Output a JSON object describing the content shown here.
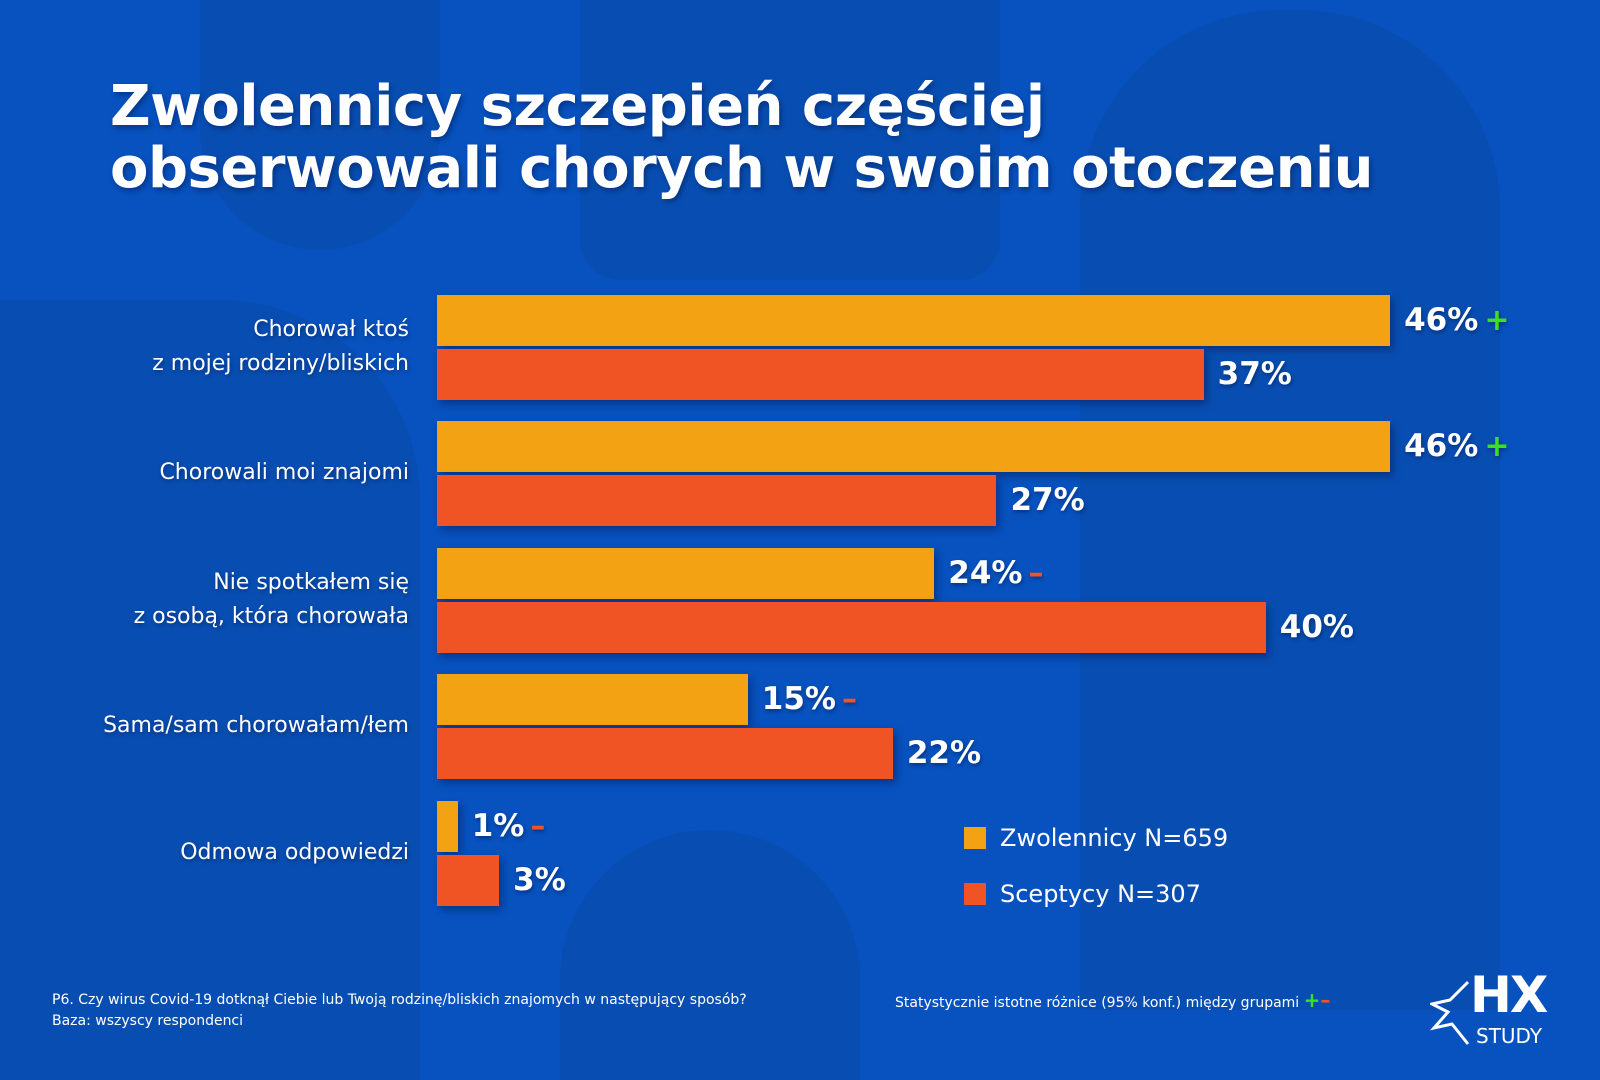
{
  "title": [
    "Zwolennicy szczepień częściej",
    "obserwowali chorych w swoim otoczeniu"
  ],
  "colors": {
    "zwolennicy": "#f2a213",
    "sceptycy": "#f15424",
    "plus": "#3ee01e",
    "minus": "#f15424",
    "background": "#0752bf"
  },
  "chart_data": {
    "type": "bar",
    "orientation": "horizontal",
    "categories": [
      "Chorował ktoś z mojej rodziny/bliskich",
      "Chorowali moi znajomi",
      "Nie spotkałem się z osobą, która chorowała",
      "Sama/sam chorowałam/łem",
      "Odmowa odpowiedzi"
    ],
    "category_lines": [
      [
        "Chorował ktoś",
        "z mojej rodziny/bliskich"
      ],
      [
        "Chorowali moi znajomi"
      ],
      [
        "Nie spotkałem się",
        "z osobą, która chorowała"
      ],
      [
        "Sama/sam chorowałam/łem"
      ],
      [
        "Odmowa odpowiedzi"
      ]
    ],
    "series": [
      {
        "name": "Zwolennicy N=659",
        "values": [
          46,
          46,
          24,
          15,
          1
        ],
        "labels": [
          "46%",
          "46%",
          "24%",
          "15%",
          "1%"
        ],
        "significance": [
          "+",
          "+",
          "–",
          "–",
          "–"
        ]
      },
      {
        "name": "Sceptycy N=307",
        "values": [
          37,
          27,
          40,
          22,
          3
        ],
        "labels": [
          "37%",
          "27%",
          "40%",
          "22%",
          "3%"
        ],
        "significance": [
          "",
          "",
          "",
          "",
          ""
        ]
      }
    ],
    "unit": "%",
    "legend": "bottom-right",
    "grid": false
  },
  "footer": {
    "question": "P6. Czy wirus Covid-19 dotknął Ciebie lub Twoją rodzinę/bliskich znajomych w następujący sposób?",
    "base": "Baza: wszyscy respondenci",
    "significance_note": "Statystycznie istotne różnice (95% konf.) między grupami",
    "plus": "+",
    "minus": "–"
  },
  "logo": {
    "text": "HX",
    "sub": "STUDY"
  }
}
